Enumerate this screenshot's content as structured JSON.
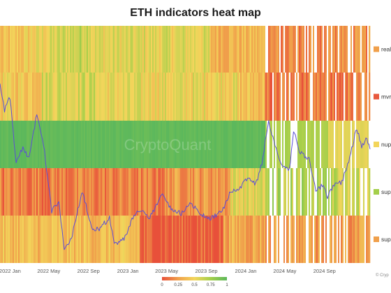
{
  "title": "ETH indicators heat map",
  "watermark": "CryptoQuant",
  "copyright": "© Cryp",
  "chart_data": {
    "type": "heatmap",
    "title": "ETH indicators heat map",
    "x_tick_labels": [
      "2022 Jan",
      "2022 May",
      "2022 Sep",
      "2023 Jan",
      "2023 May",
      "2023 Sep",
      "2024 Jan",
      "2024 May",
      "2024 Sep"
    ],
    "x_range": [
      "2021-12-01",
      "2025-01-20"
    ],
    "rows": [
      "real",
      "mvr",
      "nup",
      "sup",
      "sup"
    ],
    "row_colors": [
      "#f0a04b",
      "#e8593e",
      "#f3d55b",
      "#a4cf4a",
      "#f0a04b"
    ],
    "color_scale": {
      "ticks": [
        "0",
        "0.25",
        "0.5",
        "0.75",
        "1"
      ],
      "colors": [
        "#e8503a",
        "#f0a04b",
        "#f3d55b",
        "#a4cf4a",
        "#5cb85c"
      ]
    },
    "price_line": {
      "color": "#5b4fd6",
      "points": [
        [
          "2021-12-01",
          0.75
        ],
        [
          "2021-12-15",
          0.64
        ],
        [
          "2022-01-01",
          0.7
        ],
        [
          "2022-01-20",
          0.42
        ],
        [
          "2022-02-10",
          0.49
        ],
        [
          "2022-03-01",
          0.44
        ],
        [
          "2022-03-25",
          0.63
        ],
        [
          "2022-04-15",
          0.5
        ],
        [
          "2022-05-10",
          0.22
        ],
        [
          "2022-06-01",
          0.26
        ],
        [
          "2022-06-18",
          0.05
        ],
        [
          "2022-07-10",
          0.1
        ],
        [
          "2022-07-30",
          0.23
        ],
        [
          "2022-08-14",
          0.3
        ],
        [
          "2022-09-10",
          0.15
        ],
        [
          "2022-10-01",
          0.14
        ],
        [
          "2022-11-05",
          0.19
        ],
        [
          "2022-11-20",
          0.08
        ],
        [
          "2022-12-20",
          0.1
        ],
        [
          "2023-01-20",
          0.2
        ],
        [
          "2023-02-15",
          0.23
        ],
        [
          "2023-03-10",
          0.19
        ],
        [
          "2023-04-15",
          0.29
        ],
        [
          "2023-05-15",
          0.23
        ],
        [
          "2023-06-15",
          0.21
        ],
        [
          "2023-07-15",
          0.25
        ],
        [
          "2023-08-20",
          0.2
        ],
        [
          "2023-09-15",
          0.19
        ],
        [
          "2023-10-20",
          0.22
        ],
        [
          "2023-11-15",
          0.3
        ],
        [
          "2023-12-15",
          0.32
        ],
        [
          "2024-01-10",
          0.36
        ],
        [
          "2024-02-01",
          0.33
        ],
        [
          "2024-02-20",
          0.42
        ],
        [
          "2024-03-12",
          0.6
        ],
        [
          "2024-04-01",
          0.49
        ],
        [
          "2024-04-20",
          0.42
        ],
        [
          "2024-05-15",
          0.39
        ],
        [
          "2024-05-28",
          0.56
        ],
        [
          "2024-06-15",
          0.47
        ],
        [
          "2024-07-15",
          0.44
        ],
        [
          "2024-08-05",
          0.3
        ],
        [
          "2024-08-25",
          0.33
        ],
        [
          "2024-09-10",
          0.28
        ],
        [
          "2024-10-01",
          0.33
        ],
        [
          "2024-10-25",
          0.34
        ],
        [
          "2024-11-15",
          0.43
        ],
        [
          "2024-12-10",
          0.57
        ],
        [
          "2024-12-25",
          0.49
        ],
        [
          "2025-01-10",
          0.53
        ],
        [
          "2025-01-20",
          0.48
        ]
      ]
    }
  }
}
